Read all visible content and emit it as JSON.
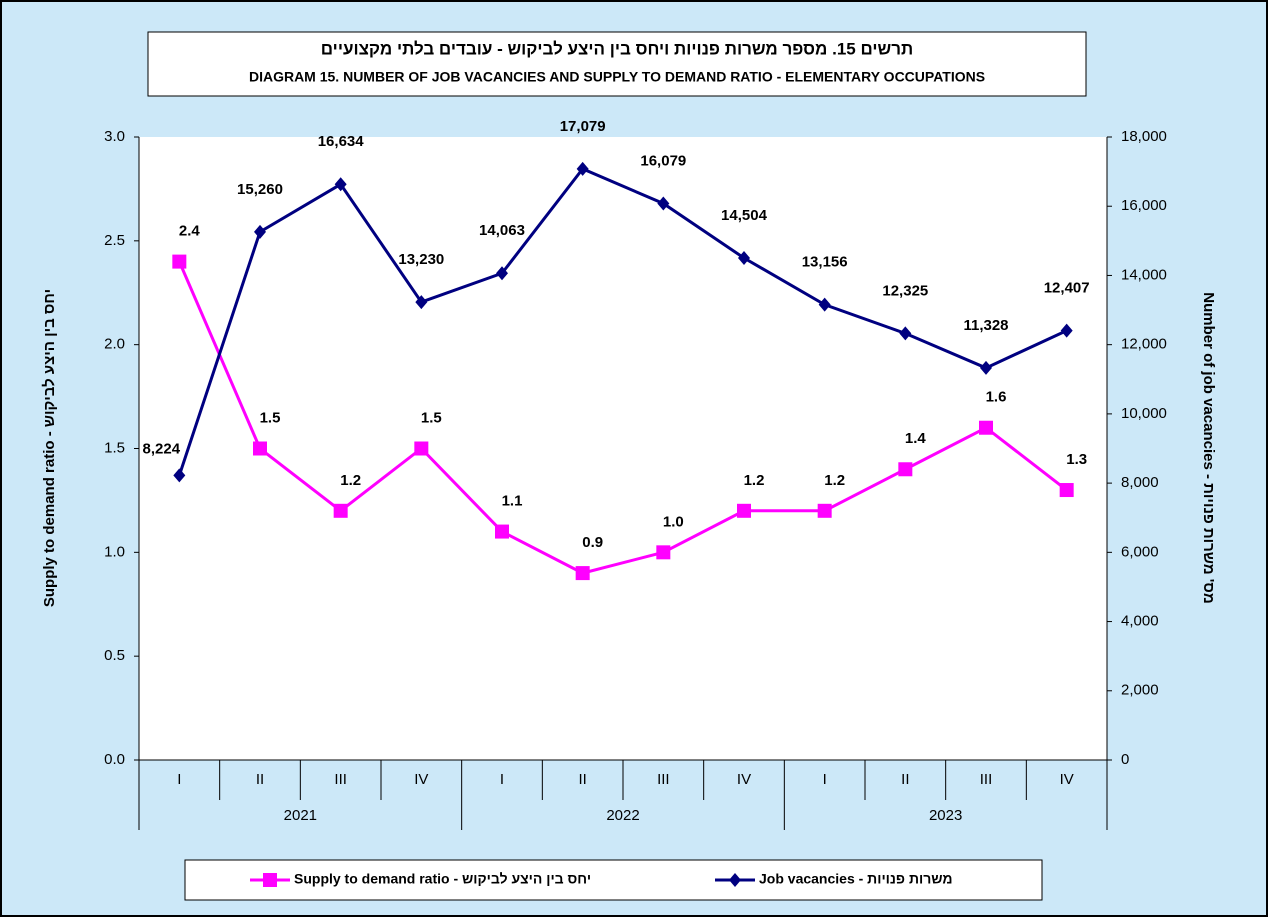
{
  "chart_data": {
    "type": "line",
    "title": "תרשים 15. מספר משרות פנויות ויחס בין היצע לביקוש - עובדים בלתי מקצועיים",
    "subtitle": "DIAGRAM 15. NUMBER OF JOB VACANCIES AND SUPPLY TO DEMAND RATIO - ELEMENTARY OCCUPATIONS",
    "y_label": "Supply to demand ratio - יחס בין היצע לביקוש",
    "y2_label": "Number of job vacancies - מס' משרות פנויות",
    "categories": [
      "I",
      "II",
      "III",
      "IV",
      "I",
      "II",
      "III",
      "IV",
      "I",
      "II",
      "III",
      "IV"
    ],
    "category_groups": [
      "2021",
      "2022",
      "2023"
    ],
    "ylim": [
      0,
      3
    ],
    "yticks": [
      {
        "value": 0,
        "label": "0.0"
      },
      0.5,
      {
        "value": 1,
        "label": "1.0"
      },
      1.5,
      {
        "value": 2,
        "label": "2.0"
      },
      2.5,
      {
        "value": 3,
        "label": "3.0"
      }
    ],
    "y2lim": [
      0,
      18000
    ],
    "y2ticks": [
      0,
      {
        "value": 2000,
        "label": "2,000"
      },
      {
        "value": 4000,
        "label": "4,000"
      },
      {
        "value": 6000,
        "label": "6,000"
      },
      {
        "value": 8000,
        "label": "8,000"
      },
      {
        "value": 10000,
        "label": "10,000"
      },
      {
        "value": 12000,
        "label": "12,000"
      },
      {
        "value": 14000,
        "label": "14,000"
      },
      {
        "value": 16000,
        "label": "16,000"
      },
      {
        "value": 18000,
        "label": "18,000"
      }
    ],
    "series": [
      {
        "name": "Supply to demand ratio - יחס בין היצע לביקוש",
        "color": "#ff00ff",
        "marker": "square",
        "values": [
          2.4,
          1.5,
          1.2,
          1.5,
          1.1,
          0.9,
          1.0,
          1.2,
          1.2,
          1.4,
          1.6,
          1.3
        ],
        "value_labels": [
          "2.4",
          "1.5",
          "1.2",
          "1.5",
          "1.1",
          "0.9",
          "1.0",
          "1.2",
          "1.2",
          "1.4",
          "1.6",
          "1.3"
        ]
      },
      {
        "name": "Job vacancies - משרות פנויות",
        "color": "#000080",
        "marker": "diamond",
        "axis": "y2",
        "values": [
          8224,
          15260,
          16634,
          13230,
          14063,
          17079,
          16079,
          14504,
          13156,
          12325,
          11328,
          12407
        ],
        "value_labels": [
          "8,224",
          "15,260",
          "16,634",
          "13,230",
          "14,063",
          "17,079",
          "16,079",
          "14,504",
          "13,156",
          "12,325",
          "11,328",
          "12,407"
        ]
      }
    ]
  }
}
